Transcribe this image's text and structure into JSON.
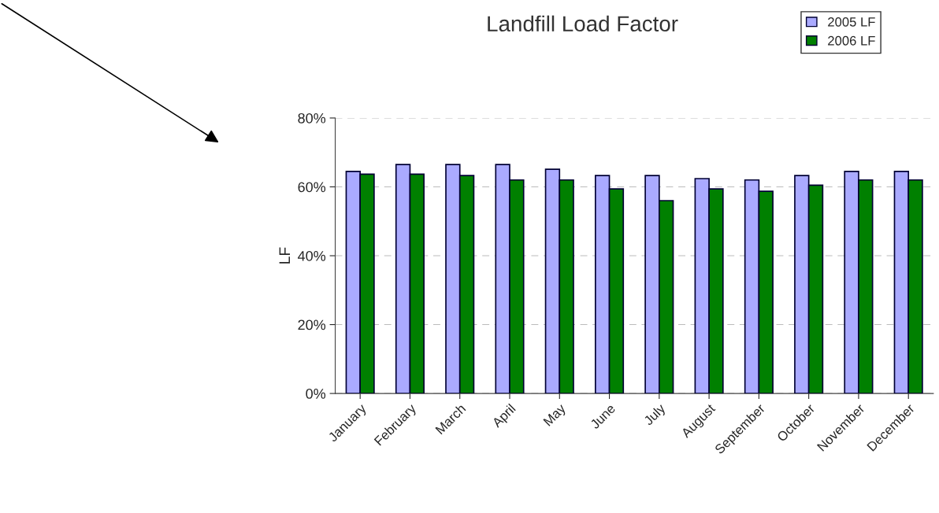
{
  "chart_data": {
    "type": "bar",
    "title": "Landfill Load Factor",
    "ylabel": "LF",
    "categories": [
      "January",
      "February",
      "March",
      "April",
      "May",
      "June",
      "July",
      "August",
      "September",
      "October",
      "November",
      "December"
    ],
    "series": [
      {
        "name": "2005 LF",
        "color": "#aaaaff",
        "values": [
          64.5,
          66.5,
          66.5,
          66.5,
          65.1,
          63.3,
          63.3,
          62.4,
          62,
          63.3,
          64.5,
          64.5
        ]
      },
      {
        "name": "2006 LF",
        "color": "#008000",
        "values": [
          63.7,
          63.7,
          63.3,
          62,
          62,
          59.4,
          56,
          59.4,
          58.7,
          60.5,
          62,
          62
        ]
      }
    ],
    "ylim": [
      0,
      80
    ],
    "yticks": [
      {
        "value": 0,
        "label": "0%"
      },
      {
        "value": 20,
        "label": "20%"
      },
      {
        "value": 40,
        "label": "40%"
      },
      {
        "value": 60,
        "label": "60%"
      },
      {
        "value": 80,
        "label": "80%"
      }
    ],
    "grid": "y",
    "legend": "top right"
  }
}
